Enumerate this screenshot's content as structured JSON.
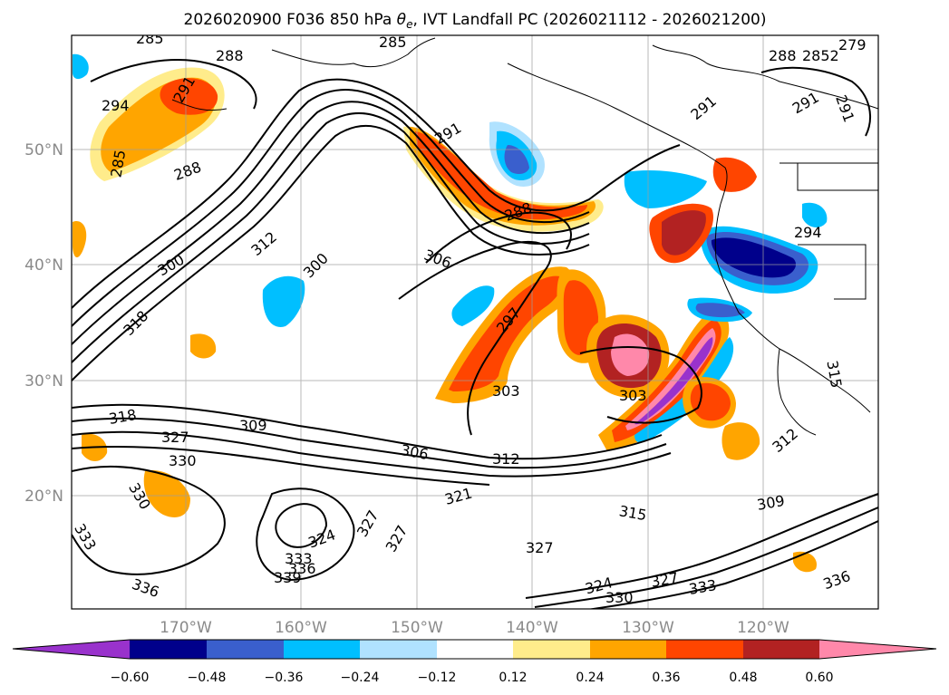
{
  "title": {
    "pre": "2026020900 F036 850 hPa ",
    "theta": "θ",
    "sub": "e",
    "post": ", IVT Landfall PC (2026021112 - 2026021200)"
  },
  "lat_labels": [
    "50°N",
    "40°N",
    "30°N",
    "20°N"
  ],
  "lon_labels": [
    "170°W",
    "160°W",
    "150°W",
    "140°W",
    "130°W",
    "120°W"
  ],
  "colorbar": {
    "colors": [
      "#9932CC",
      "#00008B",
      "#3A5FCD",
      "#00BFFF",
      "#B0E2FF",
      "#FFFFFF",
      "#FFEC8B",
      "#FFA500",
      "#FF4500",
      "#B22222",
      "#FF88AA"
    ],
    "ticks": [
      "−0.60",
      "−0.48",
      "−0.36",
      "−0.24",
      "−0.12",
      "0.12",
      "0.24",
      "0.36",
      "0.48",
      "0.60"
    ]
  },
  "contour_labels": [
    "285",
    "288",
    "294",
    "291",
    "285",
    "288",
    "285",
    "291",
    "288",
    "291",
    "288",
    "2852",
    "279",
    "291",
    "291",
    "300",
    "312",
    "300",
    "306",
    "294",
    "318",
    "327",
    "297",
    "303",
    "303",
    "318",
    "309",
    "327",
    "306",
    "312",
    "330",
    "330",
    "321",
    "315",
    "309",
    "327",
    "324",
    "333",
    "339",
    "336",
    "327",
    "324",
    "327",
    "333",
    "336",
    "330",
    "336",
    "333",
    "312",
    "315"
  ]
}
